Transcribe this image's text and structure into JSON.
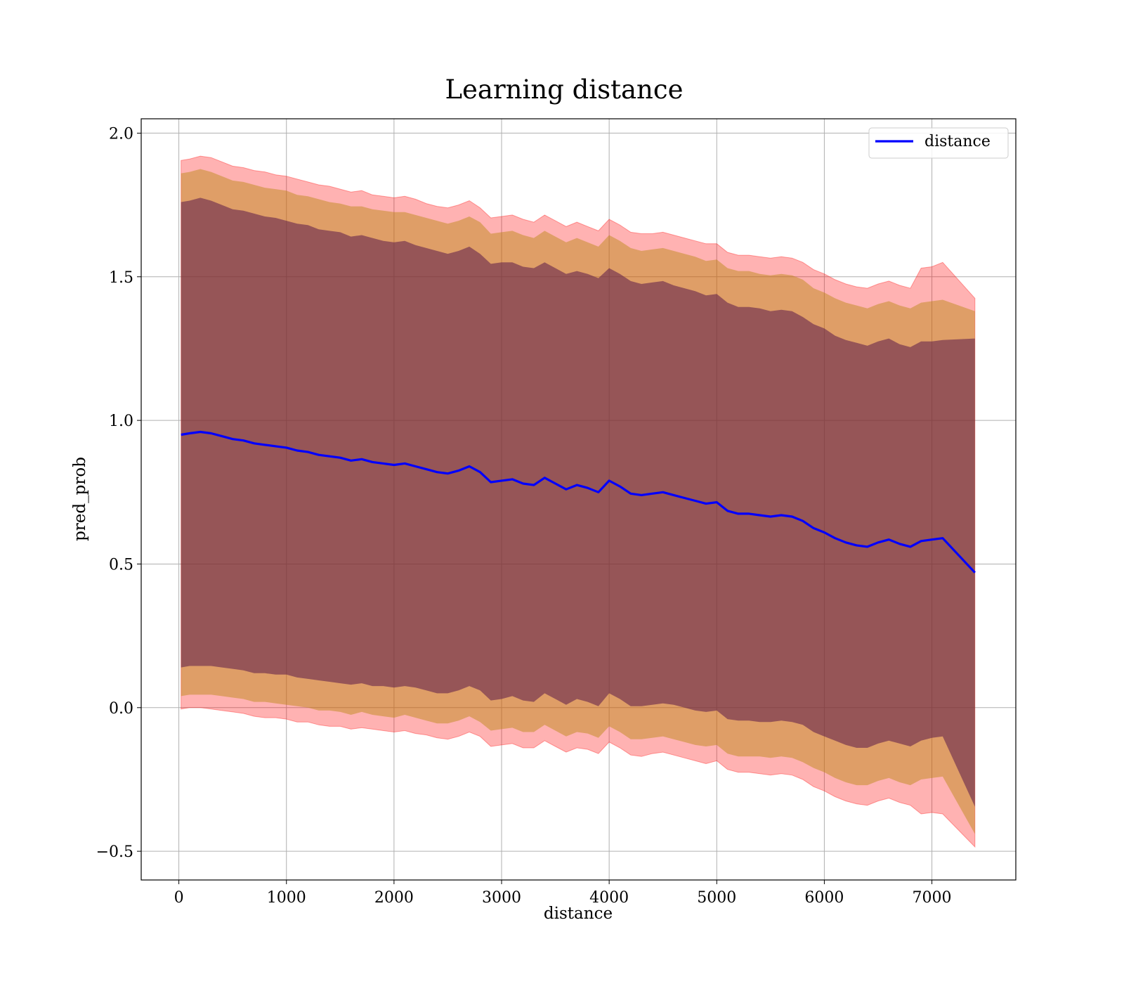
{
  "chart_data": {
    "type": "line",
    "title": "Learning distance",
    "xlabel": "distance",
    "ylabel": "pred_prob",
    "xlim": [
      -350,
      7780
    ],
    "ylim": [
      -0.6,
      2.05
    ],
    "xticks": [
      0,
      1000,
      2000,
      3000,
      4000,
      5000,
      6000,
      7000
    ],
    "yticks": [
      -0.5,
      0.0,
      0.5,
      1.0,
      1.5,
      2.0
    ],
    "xtick_labels": [
      "0",
      "1000",
      "2000",
      "3000",
      "4000",
      "5000",
      "6000",
      "7000"
    ],
    "ytick_labels": [
      "−0.5",
      "0.0",
      "0.5",
      "1.0",
      "1.5",
      "2.0"
    ],
    "grid": true,
    "legend": {
      "position": "top-right",
      "entries": [
        "distance"
      ]
    },
    "colors": {
      "line": "#0000ff",
      "band_outer": "#ff0000",
      "band_middle": "#b8860b",
      "band_inner": "#5a1a4a"
    },
    "series": [
      {
        "name": "distance",
        "x": [
          20,
          100,
          200,
          300,
          400,
          500,
          600,
          700,
          800,
          900,
          1000,
          1100,
          1200,
          1300,
          1400,
          1500,
          1600,
          1700,
          1800,
          1900,
          2000,
          2100,
          2200,
          2300,
          2400,
          2500,
          2600,
          2700,
          2800,
          2900,
          3000,
          3100,
          3200,
          3300,
          3400,
          3500,
          3600,
          3700,
          3800,
          3900,
          4000,
          4100,
          4200,
          4300,
          4400,
          4500,
          4600,
          4700,
          4800,
          4900,
          5000,
          5100,
          5200,
          5300,
          5400,
          5500,
          5600,
          5700,
          5800,
          5900,
          6000,
          6100,
          6200,
          6300,
          6400,
          6500,
          6600,
          6700,
          6800,
          6900,
          7000,
          7100,
          7400
        ],
        "y": [
          0.95,
          0.955,
          0.96,
          0.955,
          0.945,
          0.935,
          0.93,
          0.92,
          0.915,
          0.91,
          0.905,
          0.895,
          0.89,
          0.88,
          0.875,
          0.87,
          0.86,
          0.865,
          0.855,
          0.85,
          0.845,
          0.85,
          0.84,
          0.83,
          0.82,
          0.815,
          0.825,
          0.84,
          0.82,
          0.785,
          0.79,
          0.795,
          0.78,
          0.775,
          0.8,
          0.78,
          0.76,
          0.775,
          0.765,
          0.75,
          0.79,
          0.77,
          0.745,
          0.74,
          0.745,
          0.75,
          0.74,
          0.73,
          0.72,
          0.71,
          0.715,
          0.685,
          0.675,
          0.675,
          0.67,
          0.665,
          0.67,
          0.665,
          0.65,
          0.625,
          0.61,
          0.59,
          0.575,
          0.565,
          0.56,
          0.575,
          0.585,
          0.57,
          0.56,
          0.58,
          0.585,
          0.59,
          0.47
        ]
      }
    ],
    "bands": [
      {
        "layer": "outer",
        "half_width": [
          0.955,
          0.955,
          0.96,
          0.96,
          0.955,
          0.95,
          0.95,
          0.95,
          0.95,
          0.945,
          0.945,
          0.945,
          0.94,
          0.94,
          0.94,
          0.935,
          0.935,
          0.935,
          0.93,
          0.93,
          0.93,
          0.93,
          0.93,
          0.925,
          0.925,
          0.925,
          0.925,
          0.925,
          0.92,
          0.92,
          0.92,
          0.92,
          0.92,
          0.915,
          0.915,
          0.915,
          0.915,
          0.915,
          0.91,
          0.91,
          0.91,
          0.91,
          0.91,
          0.91,
          0.905,
          0.905,
          0.905,
          0.905,
          0.905,
          0.905,
          0.9,
          0.9,
          0.9,
          0.9,
          0.9,
          0.9,
          0.9,
          0.9,
          0.9,
          0.9,
          0.9,
          0.9,
          0.9,
          0.9,
          0.9,
          0.9,
          0.9,
          0.9,
          0.9,
          0.95,
          0.95,
          0.96,
          0.955
        ]
      },
      {
        "layer": "middle",
        "half_width": [
          0.91,
          0.91,
          0.915,
          0.91,
          0.905,
          0.9,
          0.9,
          0.9,
          0.895,
          0.895,
          0.895,
          0.89,
          0.89,
          0.89,
          0.885,
          0.885,
          0.885,
          0.88,
          0.88,
          0.88,
          0.88,
          0.875,
          0.875,
          0.875,
          0.875,
          0.87,
          0.87,
          0.87,
          0.87,
          0.865,
          0.865,
          0.865,
          0.865,
          0.86,
          0.86,
          0.86,
          0.86,
          0.86,
          0.855,
          0.855,
          0.855,
          0.855,
          0.855,
          0.85,
          0.85,
          0.85,
          0.85,
          0.85,
          0.85,
          0.845,
          0.845,
          0.845,
          0.845,
          0.845,
          0.84,
          0.84,
          0.84,
          0.84,
          0.84,
          0.835,
          0.835,
          0.835,
          0.835,
          0.835,
          0.83,
          0.83,
          0.83,
          0.83,
          0.83,
          0.83,
          0.83,
          0.83,
          0.91
        ]
      },
      {
        "layer": "inner",
        "half_width": [
          0.81,
          0.81,
          0.815,
          0.81,
          0.805,
          0.8,
          0.8,
          0.8,
          0.795,
          0.795,
          0.79,
          0.79,
          0.79,
          0.785,
          0.785,
          0.785,
          0.78,
          0.78,
          0.78,
          0.775,
          0.775,
          0.775,
          0.77,
          0.77,
          0.77,
          0.765,
          0.765,
          0.765,
          0.76,
          0.76,
          0.76,
          0.755,
          0.755,
          0.755,
          0.75,
          0.75,
          0.75,
          0.745,
          0.745,
          0.745,
          0.74,
          0.74,
          0.74,
          0.735,
          0.735,
          0.735,
          0.73,
          0.73,
          0.73,
          0.725,
          0.725,
          0.725,
          0.72,
          0.72,
          0.72,
          0.715,
          0.715,
          0.715,
          0.71,
          0.71,
          0.71,
          0.705,
          0.705,
          0.705,
          0.7,
          0.7,
          0.7,
          0.695,
          0.695,
          0.695,
          0.69,
          0.69,
          0.815
        ]
      }
    ]
  }
}
